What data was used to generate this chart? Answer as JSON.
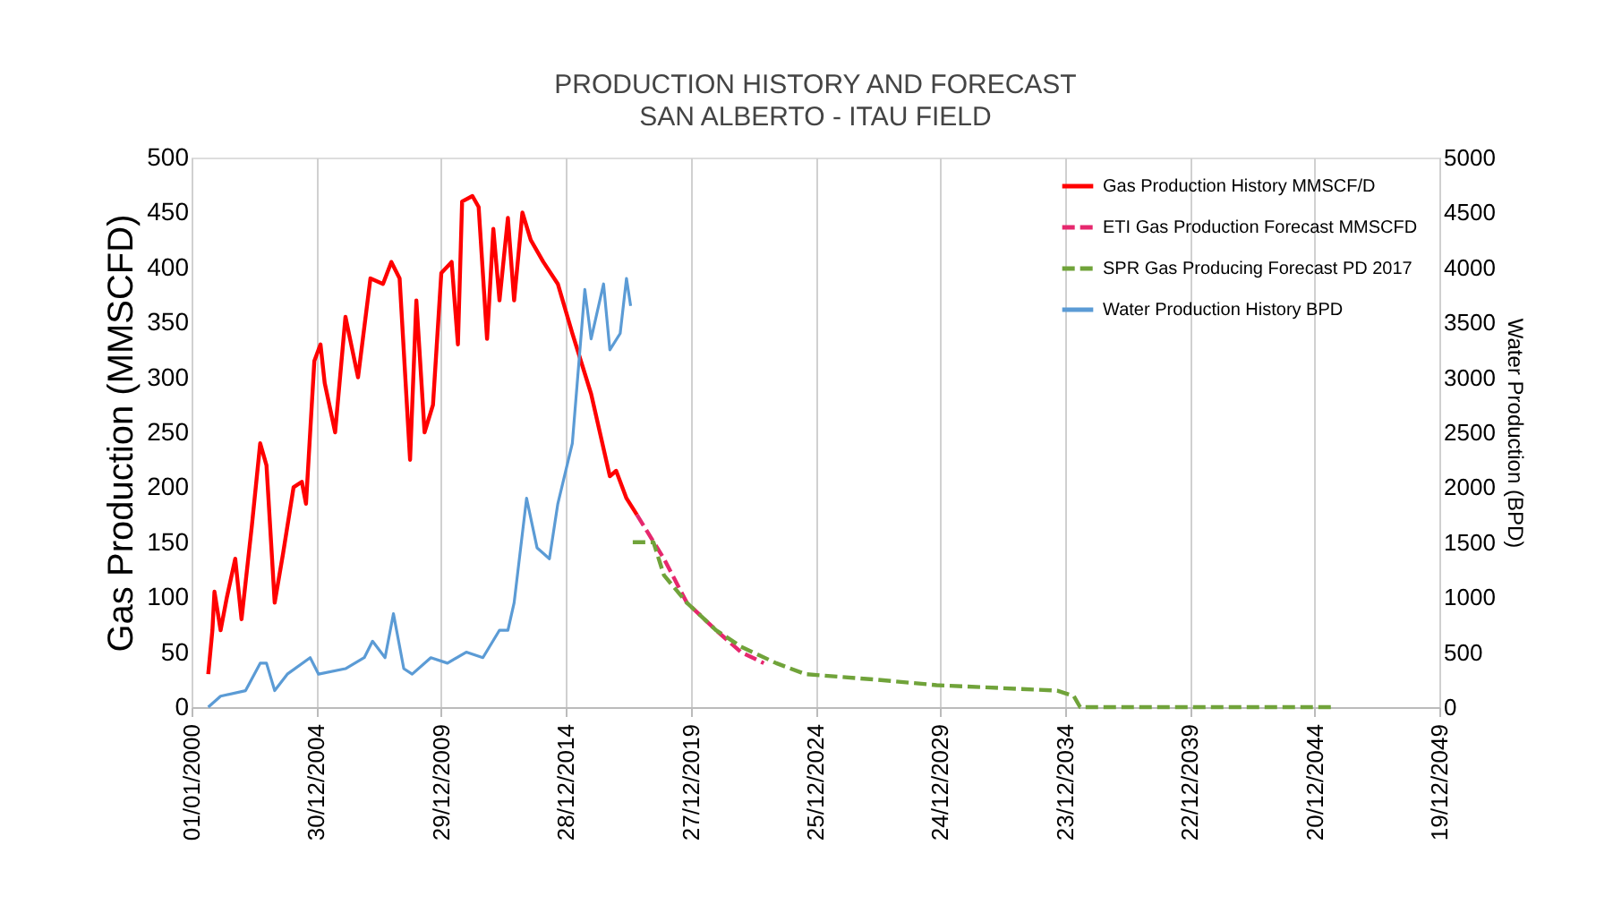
{
  "chart_data": {
    "type": "line",
    "title": "PRODUCTION HISTORY AND FORECAST",
    "subtitle": "SAN ALBERTO - ITAU FIELD",
    "ylabel": "Gas Production (MMSCFD)",
    "y2label": "Water Production (BPD)",
    "xlim": [
      "2000-01-01",
      "2049-12-19"
    ],
    "xticks": [
      {
        "value": "2000-01-01",
        "label": "01/01/2000"
      },
      {
        "value": "2004-12-30",
        "label": "30/12/2004"
      },
      {
        "value": "2009-12-29",
        "label": "29/12/2009"
      },
      {
        "value": "2014-12-28",
        "label": "28/12/2014"
      },
      {
        "value": "2019-12-27",
        "label": "27/12/2019"
      },
      {
        "value": "2024-12-25",
        "label": "25/12/2024"
      },
      {
        "value": "2029-12-24",
        "label": "24/12/2029"
      },
      {
        "value": "2034-12-23",
        "label": "23/12/2034"
      },
      {
        "value": "2039-12-22",
        "label": "22/12/2039"
      },
      {
        "value": "2044-12-20",
        "label": "20/12/2044"
      },
      {
        "value": "2049-12-19",
        "label": "19/12/2049"
      }
    ],
    "ylim": [
      0,
      500
    ],
    "yticks": [
      0,
      50,
      100,
      150,
      200,
      250,
      300,
      350,
      400,
      450,
      500
    ],
    "y2lim": [
      0,
      5000
    ],
    "y2ticks": [
      0,
      500,
      1000,
      1500,
      2000,
      2500,
      3000,
      3500,
      4000,
      4500,
      5000
    ],
    "grid": "x",
    "legend": "top right",
    "marker": "none",
    "series": [
      {
        "name": "Gas Production History   MMSCF/D",
        "color": "#ff0000",
        "line_style": "solid",
        "x": [
          "2000-09",
          "2000-11",
          "2000-12",
          "2001-03",
          "2001-06",
          "2001-10",
          "2002-01",
          "2002-06",
          "2002-10",
          "2003-01",
          "2003-05",
          "2003-09",
          "2004-02",
          "2004-06",
          "2004-08",
          "2004-12",
          "2005-03",
          "2005-05",
          "2005-10",
          "2006-03",
          "2006-09",
          "2007-03",
          "2007-09",
          "2008-01",
          "2008-05",
          "2008-10",
          "2009-01",
          "2009-05",
          "2009-09",
          "2010-01",
          "2010-06",
          "2010-09",
          "2010-11",
          "2011-04",
          "2011-07",
          "2011-11",
          "2012-02",
          "2012-05",
          "2012-09",
          "2012-12",
          "2013-04",
          "2013-08",
          "2014-02",
          "2014-09",
          "2015-04",
          "2016-01",
          "2016-10",
          "2017-01",
          "2017-06",
          "2017-11"
        ],
        "values": [
          30,
          70,
          105,
          70,
          100,
          135,
          80,
          165,
          240,
          220,
          95,
          140,
          200,
          205,
          185,
          315,
          330,
          295,
          250,
          355,
          300,
          390,
          385,
          405,
          390,
          225,
          370,
          250,
          275,
          395,
          405,
          330,
          460,
          465,
          455,
          335,
          435,
          370,
          445,
          370,
          450,
          425,
          405,
          385,
          340,
          285,
          210,
          215,
          190,
          175
        ]
      },
      {
        "name": "ETI Gas Production Forecast MMSCFD",
        "color": "#e6286e",
        "line_style": "dashed",
        "x": [
          "2017-11",
          "2018-12",
          "2019-11",
          "2021-01",
          "2022-01",
          "2022-12"
        ],
        "values": [
          175,
          135,
          95,
          70,
          50,
          40
        ]
      },
      {
        "name": "SPR  Gas Producing Forecast  PD  2017",
        "color": "#70a33a",
        "line_style": "dashed",
        "x": [
          "2017-09",
          "2018-07",
          "2018-12",
          "2019-11",
          "2021-01",
          "2022-01",
          "2023-06",
          "2024-08",
          "2027-06",
          "2029-11",
          "2034-09",
          "2035-05",
          "2035-08",
          "2045-09"
        ],
        "values": [
          150,
          150,
          120,
          95,
          70,
          55,
          40,
          30,
          25,
          20,
          15,
          10,
          0,
          0
        ]
      },
      {
        "name": "Water Production History BPD",
        "color": "#5b9bd5",
        "line_style": "solid",
        "axis": "y2",
        "x": [
          "2000-09",
          "2001-03",
          "2002-03",
          "2002-10",
          "2003-01",
          "2003-05",
          "2003-11",
          "2004-10",
          "2005-02",
          "2006-03",
          "2006-12",
          "2007-04",
          "2007-10",
          "2008-02",
          "2008-07",
          "2008-11",
          "2009-08",
          "2010-04",
          "2011-01",
          "2011-09",
          "2012-05",
          "2012-09",
          "2012-12",
          "2013-06",
          "2013-11",
          "2014-05",
          "2014-09",
          "2015-04",
          "2015-10",
          "2016-01",
          "2016-07",
          "2016-10",
          "2017-03",
          "2017-06",
          "2017-08"
        ],
        "values": [
          0,
          100,
          150,
          400,
          400,
          150,
          300,
          450,
          300,
          350,
          450,
          600,
          450,
          850,
          350,
          300,
          450,
          400,
          500,
          450,
          700,
          700,
          950,
          1900,
          1450,
          1350,
          1850,
          2400,
          3800,
          3350,
          3850,
          3250,
          3400,
          3900,
          3650
        ]
      }
    ]
  }
}
